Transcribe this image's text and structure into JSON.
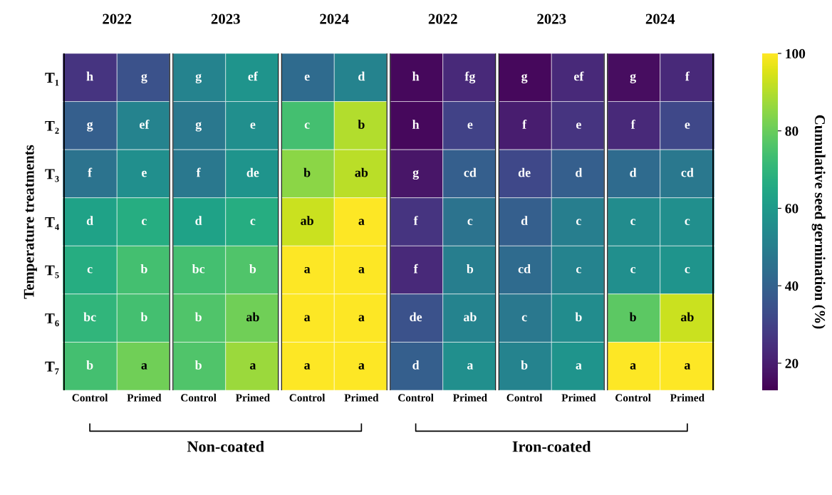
{
  "chart_data": {
    "type": "heatmap",
    "ylabel": "Temperature treatments",
    "clabel": "Cumulative seed germination (%)",
    "categories": [
      "Control",
      "Primed",
      "Control",
      "Primed",
      "Control",
      "Primed",
      "Control",
      "Primed",
      "Control",
      "Primed",
      "Control",
      "Primed"
    ],
    "y_categories": [
      "T₁",
      "T₂",
      "T₃",
      "T₄",
      "T₅",
      "T₆",
      "T₇"
    ],
    "clim": [
      13,
      100
    ],
    "cticks": [
      20,
      40,
      60,
      80,
      100
    ],
    "annotations": [
      "2022",
      "2023",
      "2024",
      "2022",
      "2023",
      "2024",
      "Non-coated",
      "Iron-coated"
    ],
    "cells": [
      [
        26,
        35,
        52,
        58,
        43,
        52,
        15,
        23,
        15,
        23,
        16,
        23
      ],
      [
        39,
        52,
        48,
        56,
        74,
        90,
        15,
        30,
        20,
        26,
        23,
        32
      ],
      [
        46,
        56,
        48,
        58,
        85,
        91,
        18,
        39,
        32,
        39,
        43,
        48
      ],
      [
        63,
        67,
        63,
        67,
        93,
        100,
        26,
        46,
        39,
        50,
        55,
        56
      ],
      [
        67,
        74,
        74,
        76,
        100,
        100,
        23,
        50,
        43,
        52,
        56,
        58
      ],
      [
        70,
        74,
        76,
        81,
        100,
        100,
        35,
        52,
        48,
        55,
        78,
        93
      ],
      [
        74,
        81,
        76,
        87,
        100,
        100,
        39,
        56,
        52,
        58,
        100,
        100
      ]
    ],
    "cell_labels": [
      [
        "h",
        "g",
        "g",
        "ef",
        "e",
        "d",
        "h",
        "fg",
        "g",
        "ef",
        "g",
        "f"
      ],
      [
        "g",
        "ef",
        "g",
        "e",
        "c",
        "b",
        "h",
        "e",
        "f",
        "e",
        "f",
        "e"
      ],
      [
        "f",
        "e",
        "f",
        "de",
        "b",
        "ab",
        "g",
        "cd",
        "de",
        "d",
        "d",
        "cd"
      ],
      [
        "d",
        "c",
        "d",
        "c",
        "ab",
        "a",
        "f",
        "c",
        "d",
        "c",
        "c",
        "c"
      ],
      [
        "c",
        "b",
        "bc",
        "b",
        "a",
        "a",
        "f",
        "b",
        "cd",
        "c",
        "c",
        "c"
      ],
      [
        "bc",
        "b",
        "b",
        "ab",
        "a",
        "a",
        "de",
        "ab",
        "c",
        "b",
        "b",
        "ab"
      ],
      [
        "b",
        "a",
        "b",
        "a",
        "a",
        "a",
        "d",
        "a",
        "b",
        "a",
        "a",
        "a"
      ]
    ]
  }
}
